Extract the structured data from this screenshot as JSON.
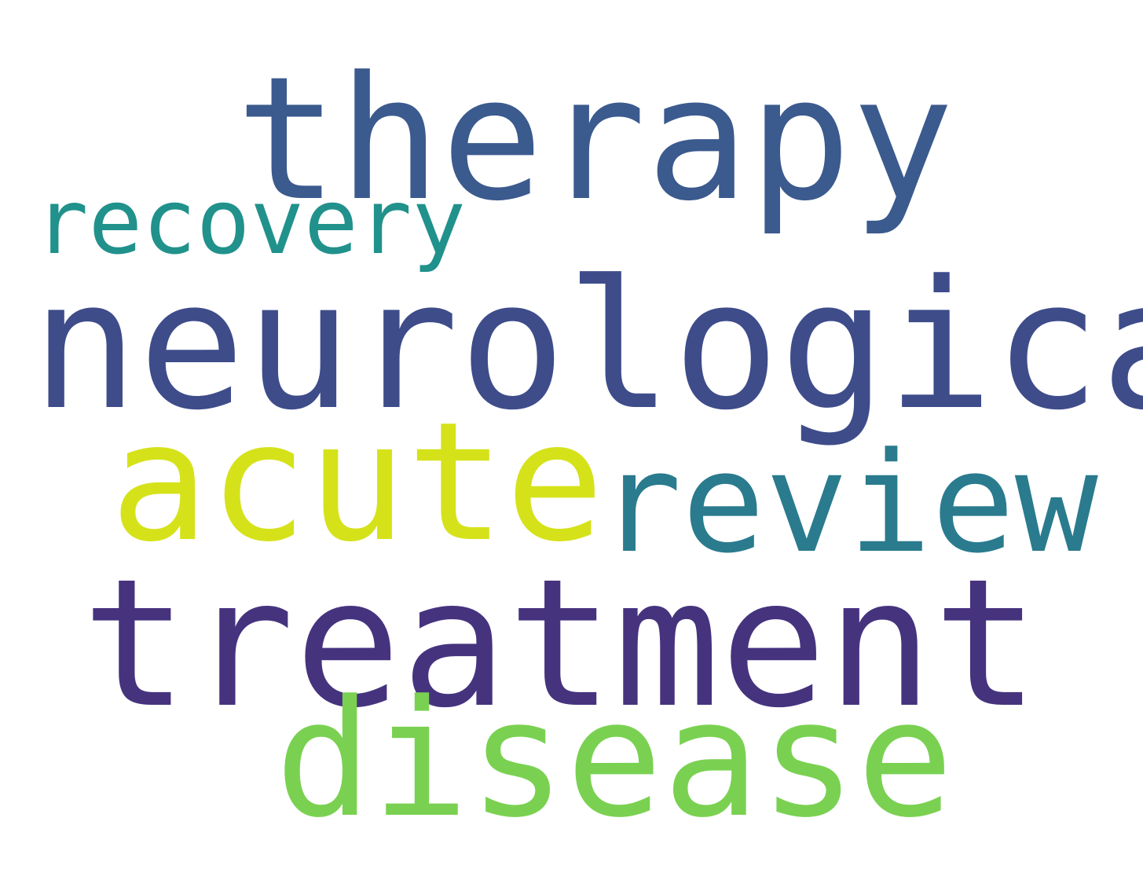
{
  "word_cloud": {
    "background_color": "#ffffff",
    "words": [
      {
        "id": "therapy",
        "text": "therapy",
        "color": "#3b5a8e"
      },
      {
        "id": "recovery",
        "text": "recovery",
        "color": "#21918c"
      },
      {
        "id": "neurological",
        "text": "neurological",
        "color": "#3e4c8a"
      },
      {
        "id": "acute",
        "text": "acute",
        "color": "#d5e21a"
      },
      {
        "id": "review",
        "text": "review",
        "color": "#2a7b8e"
      },
      {
        "id": "treatment",
        "text": "treatment",
        "color": "#46337e"
      },
      {
        "id": "disease",
        "text": "disease",
        "color": "#7ad151"
      }
    ]
  }
}
